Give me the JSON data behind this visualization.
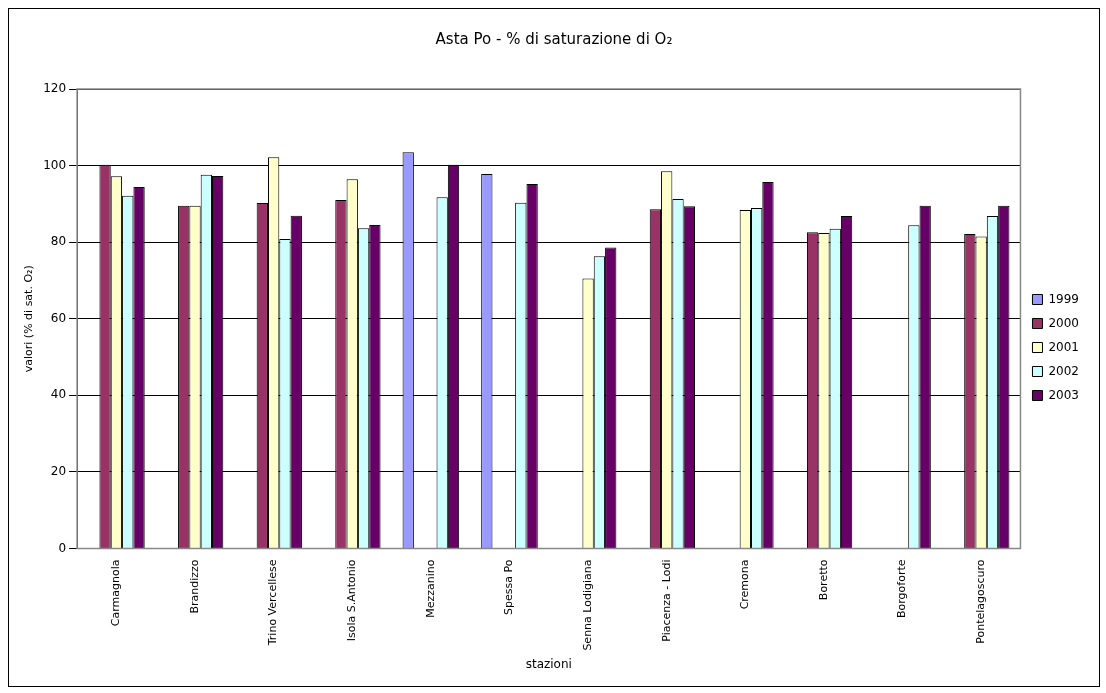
{
  "chart_data": {
    "type": "bar",
    "title": "Asta Po - % di saturazione di O₂",
    "xlabel": "stazioni",
    "ylabel": "valori (% di sat. O₂)",
    "categories": [
      "Carmagnola",
      "Brandizzo",
      "Trino Vercellese",
      "Isola S.Antonio",
      "Mezzanino",
      "Spessa Po",
      "Senna Lodigiana",
      "Piacenza - Lodi",
      "Cremona",
      "Boretto",
      "Borgoforte",
      "Pontelagoscuro"
    ],
    "series": [
      {
        "name": "1999",
        "color": "#9999ff",
        "values": [
          null,
          null,
          null,
          null,
          103.5,
          97.8,
          null,
          null,
          null,
          null,
          null,
          null
        ]
      },
      {
        "name": "2000",
        "color": "#993366",
        "values": [
          100.2,
          89.5,
          90.2,
          91,
          null,
          null,
          null,
          88.6,
          null,
          82.6,
          null,
          82.1
        ]
      },
      {
        "name": "2001",
        "color": "#ffffcc",
        "values": [
          97.2,
          89.5,
          102.2,
          96.4,
          null,
          null,
          70.5,
          98.5,
          88.4,
          82.4,
          null,
          81.5
        ]
      },
      {
        "name": "2002",
        "color": "#ccffff",
        "values": [
          92.1,
          97.6,
          80.8,
          83.6,
          91.7,
          90.3,
          76.3,
          91.3,
          88.9,
          83.5,
          84.4,
          86.8
        ]
      },
      {
        "name": "2003",
        "color": "#660066",
        "values": [
          94.4,
          97.3,
          86.9,
          84.5,
          100.2,
          95.2,
          78.6,
          89.4,
          95.7,
          86.8,
          89.5,
          89.5
        ]
      }
    ],
    "ylim": [
      0,
      120
    ],
    "yticks": [
      0,
      20,
      40,
      60,
      80,
      100,
      120
    ],
    "grid": "y",
    "legend": "right"
  }
}
